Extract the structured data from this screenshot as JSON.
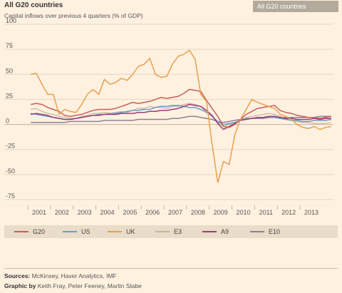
{
  "header": {
    "title": "All G20 countries",
    "subtitle": "Capital inflows over previous 4 quarters (% of GDP)",
    "selector_label": "All G20 countries"
  },
  "chart_data": {
    "type": "line",
    "title": "All G20 countries",
    "ylabel": "Capital inflows over previous 4 quarters (% of GDP)",
    "xlabel": "",
    "x_start": 2000.625,
    "x_step": 0.25,
    "ylim": [
      -75,
      100
    ],
    "yticks": [
      100,
      75,
      50,
      25,
      0,
      -25,
      -50,
      -75
    ],
    "ytick_labels": [
      "100",
      "75",
      "50",
      "25",
      "0",
      "-25",
      "-50",
      "-75"
    ],
    "xticks": [
      "2001",
      "2002",
      "2003",
      "2004",
      "2005",
      "2006",
      "2007",
      "2008",
      "2009",
      "2010",
      "2011",
      "2012",
      "2013"
    ],
    "grid": "horizontal",
    "legend": "bottom",
    "series": [
      {
        "name": "G20",
        "color": "#c75f5a",
        "values": [
          20,
          21,
          20,
          17,
          15,
          13,
          9,
          8,
          9,
          10,
          12,
          14,
          15,
          15,
          15,
          16,
          18,
          20,
          22,
          21,
          22,
          23,
          25,
          27,
          26,
          27,
          28,
          31,
          35,
          34,
          33,
          24,
          16,
          8,
          -2,
          -3,
          0,
          5,
          10,
          13,
          16,
          17,
          18,
          19,
          14,
          12,
          11,
          9,
          8,
          7,
          7,
          6,
          7,
          8
        ]
      },
      {
        "name": "US",
        "color": "#6e9bc8",
        "values": [
          11,
          10,
          9,
          8,
          7,
          6,
          5,
          5,
          6,
          7,
          8,
          9,
          10,
          10,
          11,
          11,
          12,
          13,
          14,
          14,
          15,
          15,
          17,
          18,
          18,
          19,
          19,
          18,
          17,
          17,
          15,
          12,
          8,
          3,
          0,
          1,
          2,
          4,
          6,
          6,
          7,
          7,
          8,
          7,
          6,
          5,
          4,
          4,
          3,
          3,
          4,
          4,
          4,
          5
        ]
      },
      {
        "name": "UK",
        "color": "#e8a04c",
        "values": [
          50,
          51,
          40,
          30,
          30,
          10,
          15,
          13,
          12,
          20,
          30,
          35,
          30,
          45,
          40,
          42,
          46,
          44,
          50,
          58,
          60,
          66,
          50,
          47,
          48,
          60,
          68,
          70,
          74,
          65,
          30,
          23,
          -20,
          -58,
          -37,
          -40,
          -10,
          5,
          15,
          25,
          22,
          20,
          18,
          16,
          10,
          8,
          5,
          0,
          -3,
          -4,
          -2,
          -5,
          -3,
          -2
        ]
      },
      {
        "name": "E3",
        "color": "#c2b69b",
        "values": [
          15,
          16,
          13,
          11,
          10,
          8,
          7,
          6,
          6,
          8,
          9,
          11,
          11,
          12,
          11,
          12,
          13,
          12,
          14,
          16,
          16,
          18,
          17,
          17,
          16,
          18,
          18,
          20,
          21,
          20,
          18,
          12,
          8,
          2,
          -2,
          0,
          2,
          4,
          7,
          8,
          9,
          10,
          11,
          10,
          8,
          6,
          4,
          3,
          2,
          2,
          1,
          1,
          1,
          2
        ]
      },
      {
        "name": "A9",
        "color": "#9b3f7a",
        "values": [
          10,
          11,
          10,
          9,
          7,
          6,
          5,
          5,
          6,
          7,
          8,
          9,
          9,
          10,
          10,
          10,
          11,
          11,
          11,
          12,
          12,
          13,
          13,
          14,
          14,
          15,
          16,
          18,
          20,
          19,
          18,
          14,
          9,
          1,
          -5,
          -2,
          1,
          4,
          5,
          6,
          7,
          7,
          8,
          8,
          7,
          6,
          6,
          5,
          5,
          5,
          6,
          5,
          6,
          6
        ]
      },
      {
        "name": "E10",
        "color": "#8a8295",
        "values": [
          2,
          2,
          2,
          2,
          2,
          2,
          2,
          3,
          3,
          3,
          3,
          3,
          3,
          4,
          4,
          4,
          4,
          4,
          4,
          5,
          5,
          5,
          5,
          5,
          5,
          6,
          6,
          7,
          8,
          8,
          7,
          6,
          5,
          3,
          2,
          3,
          4,
          5,
          6,
          6,
          6,
          6,
          7,
          7,
          7,
          7,
          7,
          7,
          7,
          7,
          7,
          8,
          8,
          8
        ]
      }
    ]
  },
  "footer": {
    "sources_label": "Sources:",
    "sources_text": " McKinsey, Haver Analytics, IMF",
    "credit_label": "Graphic by",
    "credit_text": " Keith Fray, Peter Feeney, Martin Stabe"
  }
}
